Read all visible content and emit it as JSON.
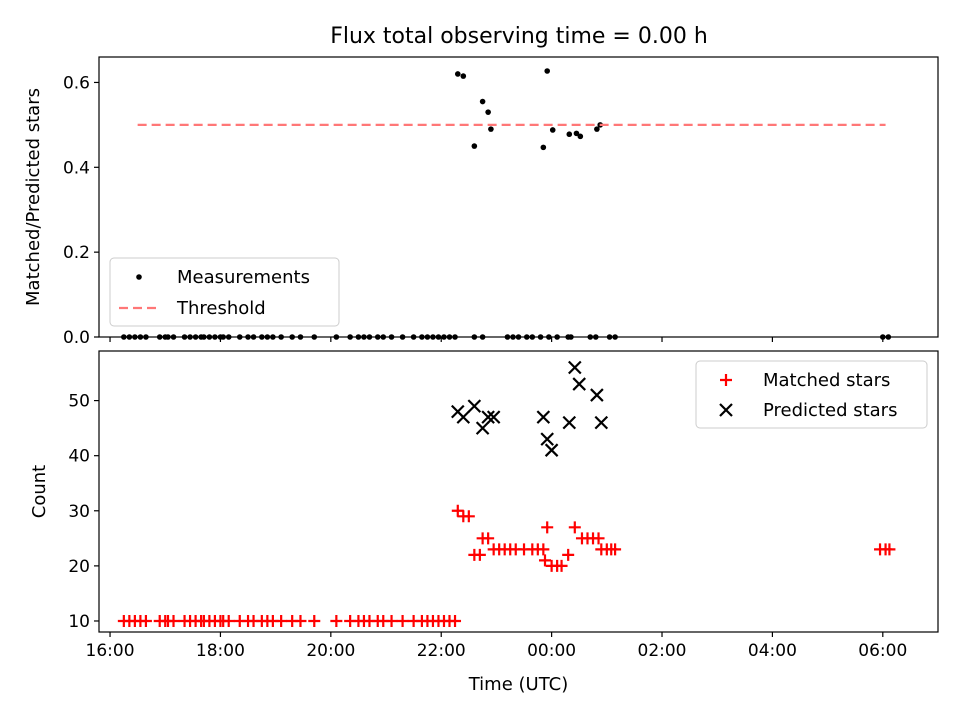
{
  "chart_data": [
    {
      "type": "scatter",
      "title": "Flux total observing time = 0.00 h",
      "xlabel": "",
      "ylabel": "Matched/Predicted stars",
      "x_unit": "hours UTC",
      "xlim": [
        15.8,
        31.0
      ],
      "ylim": [
        0.0,
        0.66
      ],
      "yticks": [
        "0.0",
        "0.2",
        "0.4",
        "0.6"
      ],
      "grid": false,
      "legend_position": "lower-left",
      "series": [
        {
          "name": "Measurements",
          "marker": "dot",
          "color": "#000000",
          "points": [
            [
              16.25,
              0
            ],
            [
              16.35,
              0
            ],
            [
              16.45,
              0
            ],
            [
              16.55,
              0
            ],
            [
              16.65,
              0
            ],
            [
              16.9,
              0
            ],
            [
              17.0,
              0
            ],
            [
              17.05,
              0
            ],
            [
              17.15,
              0
            ],
            [
              17.35,
              0
            ],
            [
              17.45,
              0
            ],
            [
              17.55,
              0
            ],
            [
              17.65,
              0
            ],
            [
              17.7,
              0
            ],
            [
              17.8,
              0
            ],
            [
              17.9,
              0
            ],
            [
              18.0,
              0
            ],
            [
              18.05,
              0
            ],
            [
              18.15,
              0
            ],
            [
              18.35,
              0
            ],
            [
              18.5,
              0
            ],
            [
              18.6,
              0
            ],
            [
              18.75,
              0
            ],
            [
              18.85,
              0
            ],
            [
              18.95,
              0
            ],
            [
              19.1,
              0
            ],
            [
              19.3,
              0
            ],
            [
              19.45,
              0
            ],
            [
              19.7,
              0
            ],
            [
              20.1,
              0
            ],
            [
              20.35,
              0
            ],
            [
              20.5,
              0
            ],
            [
              20.6,
              0
            ],
            [
              20.7,
              0
            ],
            [
              20.85,
              0
            ],
            [
              20.95,
              0
            ],
            [
              21.1,
              0
            ],
            [
              21.3,
              0
            ],
            [
              21.5,
              0
            ],
            [
              21.65,
              0
            ],
            [
              21.75,
              0
            ],
            [
              21.85,
              0
            ],
            [
              21.95,
              0
            ],
            [
              22.05,
              0
            ],
            [
              22.15,
              0
            ],
            [
              22.25,
              0
            ],
            [
              22.6,
              0
            ],
            [
              22.75,
              0
            ],
            [
              23.2,
              0
            ],
            [
              23.3,
              0
            ],
            [
              23.4,
              0
            ],
            [
              23.55,
              0
            ],
            [
              23.65,
              0
            ],
            [
              23.8,
              0
            ],
            [
              23.95,
              0
            ],
            [
              24.1,
              0
            ],
            [
              24.3,
              0
            ],
            [
              24.35,
              0
            ],
            [
              24.7,
              0
            ],
            [
              24.8,
              0
            ],
            [
              25.05,
              0
            ],
            [
              25.15,
              0
            ],
            [
              30.0,
              0
            ],
            [
              30.1,
              0
            ],
            [
              22.3,
              0.62
            ],
            [
              22.4,
              0.615
            ],
            [
              22.6,
              0.45
            ],
            [
              22.75,
              0.555
            ],
            [
              22.85,
              0.53
            ],
            [
              22.9,
              0.49
            ],
            [
              23.85,
              0.447
            ],
            [
              23.92,
              0.627
            ],
            [
              24.02,
              0.488
            ],
            [
              24.32,
              0.478
            ],
            [
              24.45,
              0.48
            ],
            [
              24.52,
              0.473
            ],
            [
              24.82,
              0.49
            ],
            [
              24.88,
              0.5
            ]
          ]
        },
        {
          "name": "Threshold",
          "marker": "dashed-line",
          "color": "#ff7777",
          "points": [
            [
              16.5,
              0.5
            ],
            [
              30.05,
              0.5
            ]
          ]
        }
      ]
    },
    {
      "type": "scatter",
      "title": "",
      "xlabel": "Time (UTC)",
      "ylabel": "Count",
      "x_unit": "hours UTC",
      "xlim": [
        15.8,
        31.0
      ],
      "ylim": [
        8,
        59
      ],
      "xticks": [
        "16:00",
        "18:00",
        "20:00",
        "22:00",
        "00:00",
        "02:00",
        "04:00",
        "06:00"
      ],
      "yticks": [
        "10",
        "20",
        "30",
        "40",
        "50"
      ],
      "grid": false,
      "legend_position": "top-right",
      "series": [
        {
          "name": "Matched stars",
          "marker": "plus",
          "color": "#ff0000",
          "points": [
            [
              16.25,
              10
            ],
            [
              16.35,
              10
            ],
            [
              16.45,
              10
            ],
            [
              16.55,
              10
            ],
            [
              16.65,
              10
            ],
            [
              16.9,
              10
            ],
            [
              17.0,
              10
            ],
            [
              17.05,
              10
            ],
            [
              17.15,
              10
            ],
            [
              17.35,
              10
            ],
            [
              17.45,
              10
            ],
            [
              17.55,
              10
            ],
            [
              17.65,
              10
            ],
            [
              17.7,
              10
            ],
            [
              17.8,
              10
            ],
            [
              17.9,
              10
            ],
            [
              18.0,
              10
            ],
            [
              18.05,
              10
            ],
            [
              18.15,
              10
            ],
            [
              18.35,
              10
            ],
            [
              18.5,
              10
            ],
            [
              18.6,
              10
            ],
            [
              18.75,
              10
            ],
            [
              18.85,
              10
            ],
            [
              18.95,
              10
            ],
            [
              19.1,
              10
            ],
            [
              19.3,
              10
            ],
            [
              19.45,
              10
            ],
            [
              19.7,
              10
            ],
            [
              20.1,
              10
            ],
            [
              20.35,
              10
            ],
            [
              20.5,
              10
            ],
            [
              20.6,
              10
            ],
            [
              20.7,
              10
            ],
            [
              20.85,
              10
            ],
            [
              20.95,
              10
            ],
            [
              21.1,
              10
            ],
            [
              21.3,
              10
            ],
            [
              21.5,
              10
            ],
            [
              21.65,
              10
            ],
            [
              21.75,
              10
            ],
            [
              21.85,
              10
            ],
            [
              21.95,
              10
            ],
            [
              22.05,
              10
            ],
            [
              22.15,
              10
            ],
            [
              22.25,
              10
            ],
            [
              22.3,
              30
            ],
            [
              22.4,
              29
            ],
            [
              22.5,
              29
            ],
            [
              22.6,
              22
            ],
            [
              22.7,
              22
            ],
            [
              22.75,
              25
            ],
            [
              22.85,
              25
            ],
            [
              22.95,
              23
            ],
            [
              23.05,
              23
            ],
            [
              23.15,
              23
            ],
            [
              23.25,
              23
            ],
            [
              23.35,
              23
            ],
            [
              23.5,
              23
            ],
            [
              23.65,
              23
            ],
            [
              23.75,
              23
            ],
            [
              23.85,
              23
            ],
            [
              23.88,
              21
            ],
            [
              23.92,
              27
            ],
            [
              24.0,
              20
            ],
            [
              24.1,
              20
            ],
            [
              24.18,
              20
            ],
            [
              24.3,
              22
            ],
            [
              24.42,
              27
            ],
            [
              24.55,
              25
            ],
            [
              24.65,
              25
            ],
            [
              24.75,
              25
            ],
            [
              24.85,
              25
            ],
            [
              24.9,
              23
            ],
            [
              25.0,
              23
            ],
            [
              25.08,
              23
            ],
            [
              25.15,
              23
            ],
            [
              29.95,
              23
            ],
            [
              30.05,
              23
            ],
            [
              30.12,
              23
            ]
          ]
        },
        {
          "name": "Predicted stars",
          "marker": "x",
          "color": "#000000",
          "points": [
            [
              22.3,
              48
            ],
            [
              22.4,
              47
            ],
            [
              22.6,
              49
            ],
            [
              22.75,
              45
            ],
            [
              22.85,
              47
            ],
            [
              22.95,
              47
            ],
            [
              23.85,
              47
            ],
            [
              23.92,
              43
            ],
            [
              24.0,
              41
            ],
            [
              24.32,
              46
            ],
            [
              24.42,
              56
            ],
            [
              24.5,
              53
            ],
            [
              24.82,
              51
            ],
            [
              24.9,
              46
            ]
          ]
        }
      ]
    }
  ]
}
